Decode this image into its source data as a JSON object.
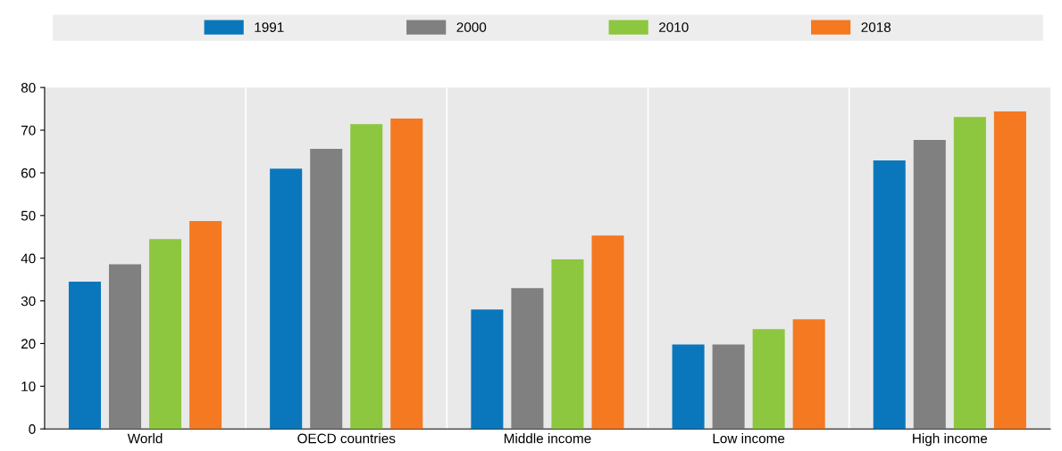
{
  "chart_data": {
    "type": "bar",
    "categories": [
      "World",
      "OECD countries",
      "Middle income",
      "Low income",
      "High income"
    ],
    "series": [
      {
        "name": "1991",
        "color": "#0a77bd",
        "values": [
          34.5,
          61,
          28,
          19.8,
          62.9
        ]
      },
      {
        "name": "2000",
        "color": "#808080",
        "values": [
          38.6,
          65.6,
          33,
          19.8,
          67.7
        ]
      },
      {
        "name": "2010",
        "color": "#8dc63f",
        "values": [
          44.5,
          71.4,
          39.7,
          23.4,
          73.1
        ]
      },
      {
        "name": "2018",
        "color": "#f47920",
        "values": [
          48.7,
          72.7,
          45.3,
          25.7,
          74.4
        ]
      }
    ],
    "ylim": [
      0,
      80
    ],
    "yticks": [
      0,
      10,
      20,
      30,
      40,
      50,
      60,
      70,
      80
    ],
    "grid": "x",
    "legend": "top"
  }
}
